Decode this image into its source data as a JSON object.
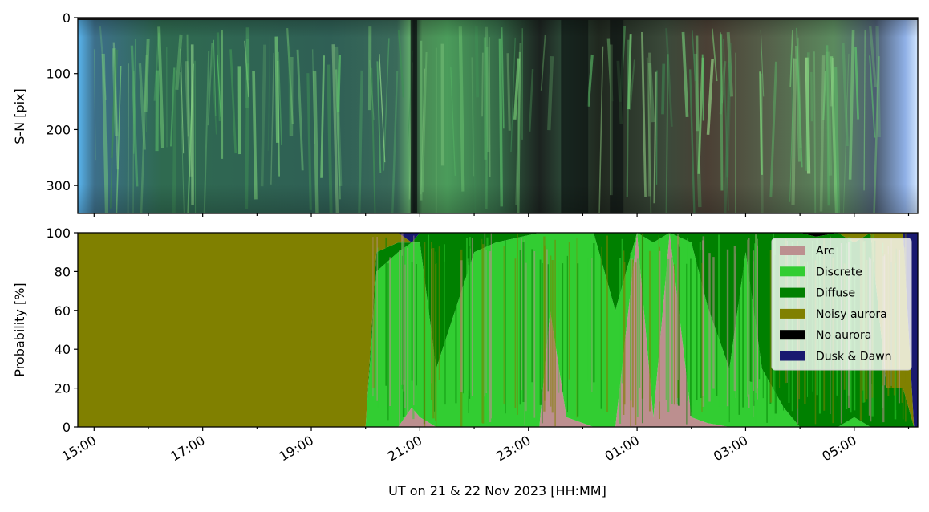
{
  "figure": {
    "xlabel": "UT on 21 & 22 Nov 2023 [HH:MM]"
  },
  "keogram": {
    "ylabel": "S-N [pix]",
    "ytick_labels": [
      "0",
      "100",
      "200",
      "300"
    ],
    "yticks": [
      0,
      100,
      200,
      300
    ],
    "ylim": [
      350,
      0
    ]
  },
  "colors": {
    "Arc": "#bc8f8f",
    "Discrete": "#32cd32",
    "Diffuse": "#008000",
    "Noisy aurora": "#808000",
    "No aurora": "#000000",
    "Dusk & Dawn": "#191970"
  },
  "legend": {
    "placement": "upper right",
    "entries": [
      "Arc",
      "Discrete",
      "Diffuse",
      "Noisy aurora",
      "No aurora",
      "Dusk & Dawn"
    ]
  },
  "chart_data": [
    {
      "type": "heatmap",
      "description_source": "keogram image (all-sky camera), time vs S-N pixel",
      "ylabel": "S-N [pix]",
      "ylim": [
        350,
        0
      ],
      "yticks": [
        0,
        100,
        200,
        300
      ],
      "x_range": [
        "2023-11-21 14:42",
        "2023-11-22 06:10"
      ],
      "xtick_labels": [
        "15:00",
        "17:00",
        "19:00",
        "21:00",
        "23:00",
        "01:00",
        "03:00",
        "05:00"
      ]
    },
    {
      "type": "area",
      "stacked": true,
      "ylabel": "Probability [%]",
      "ylim": [
        0,
        100
      ],
      "yticks": [
        0,
        20,
        40,
        60,
        80,
        100
      ],
      "ytick_labels": [
        "0",
        "20",
        "40",
        "60",
        "80",
        "100"
      ],
      "xlabel": "UT on 21 & 22 Nov 2023 [HH:MM]",
      "x_range": [
        "2023-11-21 14:42",
        "2023-11-22 06:10"
      ],
      "xtick_labels": [
        "15:00",
        "17:00",
        "19:00",
        "21:00",
        "23:00",
        "01:00",
        "03:00",
        "05:00"
      ],
      "x_hours": [
        14.7,
        20.0,
        20.2,
        20.6,
        20.85,
        21.0,
        21.3,
        22.0,
        22.4,
        23.2,
        23.4,
        23.7,
        24.2,
        24.6,
        25.0,
        25.3,
        25.6,
        26.0,
        26.3,
        26.7,
        27.0,
        27.3,
        27.7,
        28.0,
        28.3,
        28.7,
        29.0,
        29.3,
        29.6,
        29.9,
        30.1,
        30.17
      ],
      "series": [
        {
          "name": "Arc",
          "values": [
            0,
            0,
            0,
            0,
            10,
            5,
            0,
            0,
            0,
            0,
            60,
            5,
            0,
            0,
            100,
            5,
            100,
            5,
            2,
            0,
            0,
            0,
            0,
            0,
            0,
            0,
            0,
            0,
            0,
            0,
            0,
            0
          ]
        },
        {
          "name": "Discrete",
          "values": [
            0,
            0,
            80,
            90,
            85,
            90,
            30,
            90,
            95,
            100,
            40,
            95,
            100,
            60,
            0,
            90,
            0,
            90,
            60,
            30,
            90,
            30,
            10,
            0,
            0,
            0,
            5,
            0,
            0,
            0,
            0,
            0
          ]
        },
        {
          "name": "Diffuse",
          "values": [
            0,
            0,
            10,
            5,
            0,
            5,
            70,
            10,
            5,
            0,
            0,
            0,
            0,
            40,
            0,
            5,
            0,
            5,
            38,
            70,
            10,
            70,
            90,
            100,
            98,
            100,
            90,
            100,
            20,
            20,
            0,
            0
          ]
        },
        {
          "name": "Noisy aurora",
          "values": [
            100,
            100,
            10,
            5,
            0,
            0,
            0,
            0,
            0,
            0,
            0,
            0,
            0,
            0,
            0,
            0,
            0,
            0,
            0,
            0,
            0,
            0,
            0,
            0,
            0,
            0,
            5,
            0,
            80,
            80,
            0,
            0
          ]
        },
        {
          "name": "No aurora",
          "values": [
            0,
            0,
            0,
            0,
            0,
            0,
            0,
            0,
            0,
            0,
            0,
            0,
            0,
            0,
            0,
            0,
            0,
            0,
            0,
            0,
            0,
            0,
            0,
            0,
            2,
            0,
            0,
            0,
            0,
            0,
            0,
            0
          ]
        },
        {
          "name": "Dusk & Dawn",
          "values": [
            0,
            0,
            0,
            0,
            5,
            0,
            0,
            0,
            0,
            0,
            0,
            0,
            0,
            0,
            0,
            0,
            0,
            0,
            0,
            0,
            0,
            0,
            0,
            0,
            0,
            0,
            0,
            0,
            0,
            0,
            100,
            100
          ]
        }
      ]
    }
  ]
}
